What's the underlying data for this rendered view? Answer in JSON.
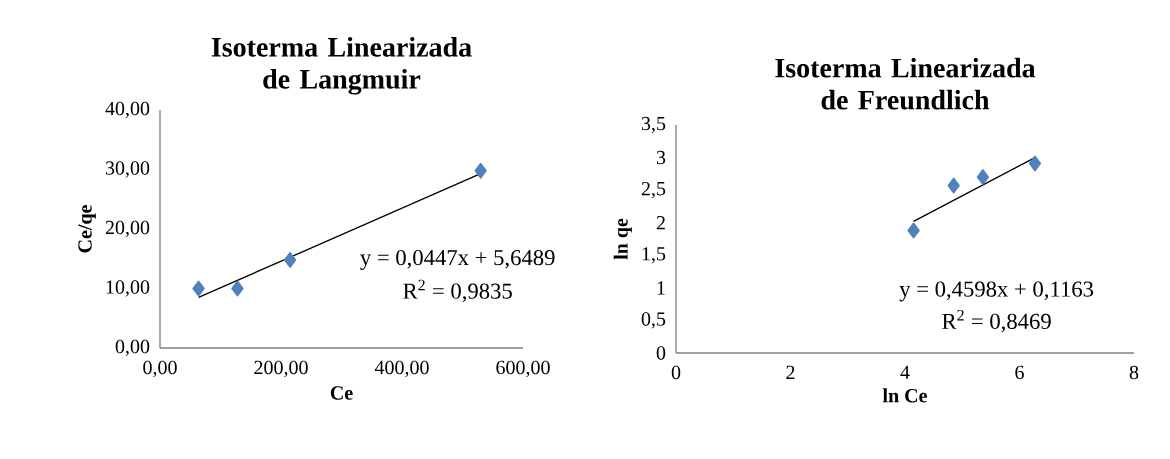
{
  "chart_data": [
    {
      "type": "scatter",
      "title": "Isoterma Linearizada de Langmuir",
      "xlabel": "Ce",
      "ylabel": "Ce/qe",
      "series": [
        {
          "color": "#4f81bd",
          "marker": "diamond",
          "x": [
            63.7,
            128,
            215,
            530
          ],
          "values": [
            10.0,
            10.0,
            14.8,
            29.8
          ]
        },
        {
          "type": "line",
          "color": "#000000",
          "marker": "none",
          "x": [
            63.7,
            530
          ],
          "values": [
            8.5,
            29.3
          ]
        }
      ],
      "xlim": [
        0,
        600
      ],
      "ylim": [
        0,
        40
      ],
      "xticks": [
        {
          "value": 0,
          "label": "0,00"
        },
        {
          "value": 200,
          "label": "200,00"
        },
        {
          "value": 400,
          "label": "400,00"
        },
        {
          "value": 600,
          "label": "600,00"
        }
      ],
      "yticks": [
        {
          "value": 0,
          "label": "0,00"
        },
        {
          "value": 10,
          "label": "10,00"
        },
        {
          "value": 20,
          "label": "20,00"
        },
        {
          "value": 30,
          "label": "30,00"
        },
        {
          "value": 40,
          "label": "40,00"
        }
      ],
      "annotations": [
        "y = 0,0447x + 5,6489",
        "R$^{2}$ = 0,9835"
      ]
    },
    {
      "type": "scatter",
      "title": "Isoterma Linearizada de Freundlich",
      "xlabel": "ln Ce",
      "ylabel": "ln qe",
      "series": [
        {
          "color": "#4f81bd",
          "marker": "diamond",
          "x": [
            4.15,
            4.85,
            5.36,
            6.27
          ],
          "values": [
            1.88,
            2.57,
            2.7,
            2.91
          ]
        },
        {
          "type": "line",
          "color": "#000000",
          "marker": "none",
          "x": [
            4.15,
            6.27
          ],
          "values": [
            2.02,
            3.0
          ]
        }
      ],
      "xlim": [
        0,
        8
      ],
      "ylim": [
        0,
        3.5
      ],
      "xticks": [
        0,
        2,
        4,
        6,
        8
      ],
      "yticks": [
        0,
        {
          "value": 0.5,
          "label": "0,5"
        },
        1,
        {
          "value": 1.5,
          "label": "1,5"
        },
        2,
        {
          "value": 2.5,
          "label": "2,5"
        },
        3,
        {
          "value": 3.5,
          "label": "3,5"
        }
      ],
      "annotations": [
        "y = 0,4598x + 0,1163",
        "R$^{2}$ = 0,8469"
      ]
    }
  ]
}
